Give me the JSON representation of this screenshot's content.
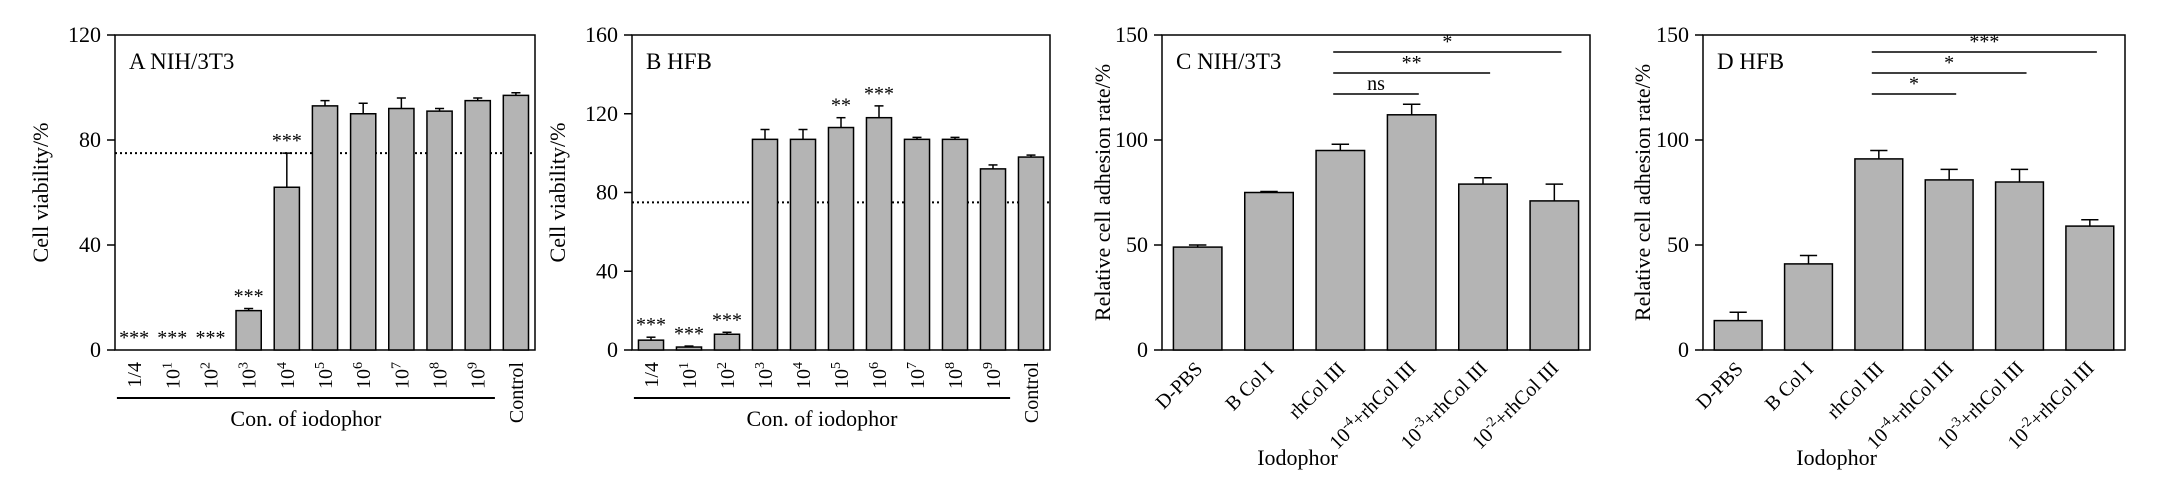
{
  "colors": {
    "bar": "#b4b4b4",
    "axis": "#000000"
  },
  "chart_data": [
    {
      "type": "bar",
      "panel_label": "A  NIH/3T3",
      "ylabel": "Cell viability/%",
      "xlabel": "Con. of  iodophor",
      "ylim": [
        0,
        120
      ],
      "yticks": [
        "0",
        "40",
        "80",
        "120"
      ],
      "threshold": 75,
      "categories": [
        "1/4",
        "10^1",
        "10^2",
        "10^3",
        "10^4",
        "10^5",
        "10^6",
        "10^7",
        "10^8",
        "10^9",
        "Control"
      ],
      "values": [
        0,
        0,
        0,
        15,
        62,
        93,
        90,
        92,
        91,
        95,
        97
      ],
      "errors": [
        0,
        0,
        0,
        0.8,
        13,
        2,
        4,
        4,
        1,
        1,
        1
      ],
      "annotations": [
        "***",
        "***",
        "***",
        "***",
        "***",
        "",
        "",
        "",
        "",
        "",
        ""
      ],
      "group_bracket": [
        0,
        9
      ]
    },
    {
      "type": "bar",
      "panel_label": "B  HFB",
      "ylabel": "Cell viability/%",
      "xlabel": "Con. of  iodophor",
      "ylim": [
        0,
        160
      ],
      "yticks": [
        "0",
        "40",
        "80",
        "120",
        "160"
      ],
      "threshold": 75,
      "categories": [
        "1/4",
        "10^1",
        "10^2",
        "10^3",
        "10^4",
        "10^5",
        "10^6",
        "10^7",
        "10^8",
        "10^9",
        "Control"
      ],
      "values": [
        5,
        1.5,
        8,
        107,
        107,
        113,
        118,
        107,
        107,
        92,
        98
      ],
      "errors": [
        1.5,
        0.5,
        1,
        5,
        5,
        5,
        6,
        1,
        1,
        2,
        1
      ],
      "annotations": [
        "***",
        "***",
        "***",
        "",
        "",
        "**",
        "***",
        "",
        "",
        "",
        ""
      ],
      "group_bracket": [
        0,
        9
      ]
    },
    {
      "type": "bar",
      "panel_label": "C  NIH/3T3",
      "ylabel": "Relative cell adhesion rate/%",
      "xlabel": "Iodophor",
      "ylim": [
        0,
        150
      ],
      "yticks": [
        "0",
        "50",
        "100",
        "150"
      ],
      "categories": [
        "D-PBS",
        "B Col I",
        "rhCol III",
        "10^-4+rhCol III",
        "10^-3+rhCol III",
        "10^-2+rhCol III"
      ],
      "values": [
        49,
        75,
        95,
        112,
        79,
        71
      ],
      "errors": [
        1,
        0.5,
        3,
        5,
        3,
        8
      ],
      "comparisons": [
        {
          "from": 2,
          "to": 5,
          "label": "*"
        },
        {
          "from": 2,
          "to": 4,
          "label": "**"
        },
        {
          "from": 2,
          "to": 3,
          "label": "ns"
        }
      ]
    },
    {
      "type": "bar",
      "panel_label": "D  HFB",
      "ylabel": "Relative cell adhesion rate/%",
      "xlabel": "Iodophor",
      "ylim": [
        0,
        150
      ],
      "yticks": [
        "0",
        "50",
        "100",
        "150"
      ],
      "categories": [
        "D-PBS",
        "B Col I",
        "rhCol III",
        "10^-4+rhCol III",
        "10^-3+rhCol III",
        "10^-2+rhCol III"
      ],
      "values": [
        14,
        41,
        91,
        81,
        80,
        59
      ],
      "errors": [
        4,
        4,
        4,
        5,
        6,
        3
      ],
      "comparisons": [
        {
          "from": 2,
          "to": 5,
          "label": "***"
        },
        {
          "from": 2,
          "to": 4,
          "label": "*"
        },
        {
          "from": 2,
          "to": 3,
          "label": "*"
        }
      ]
    }
  ]
}
